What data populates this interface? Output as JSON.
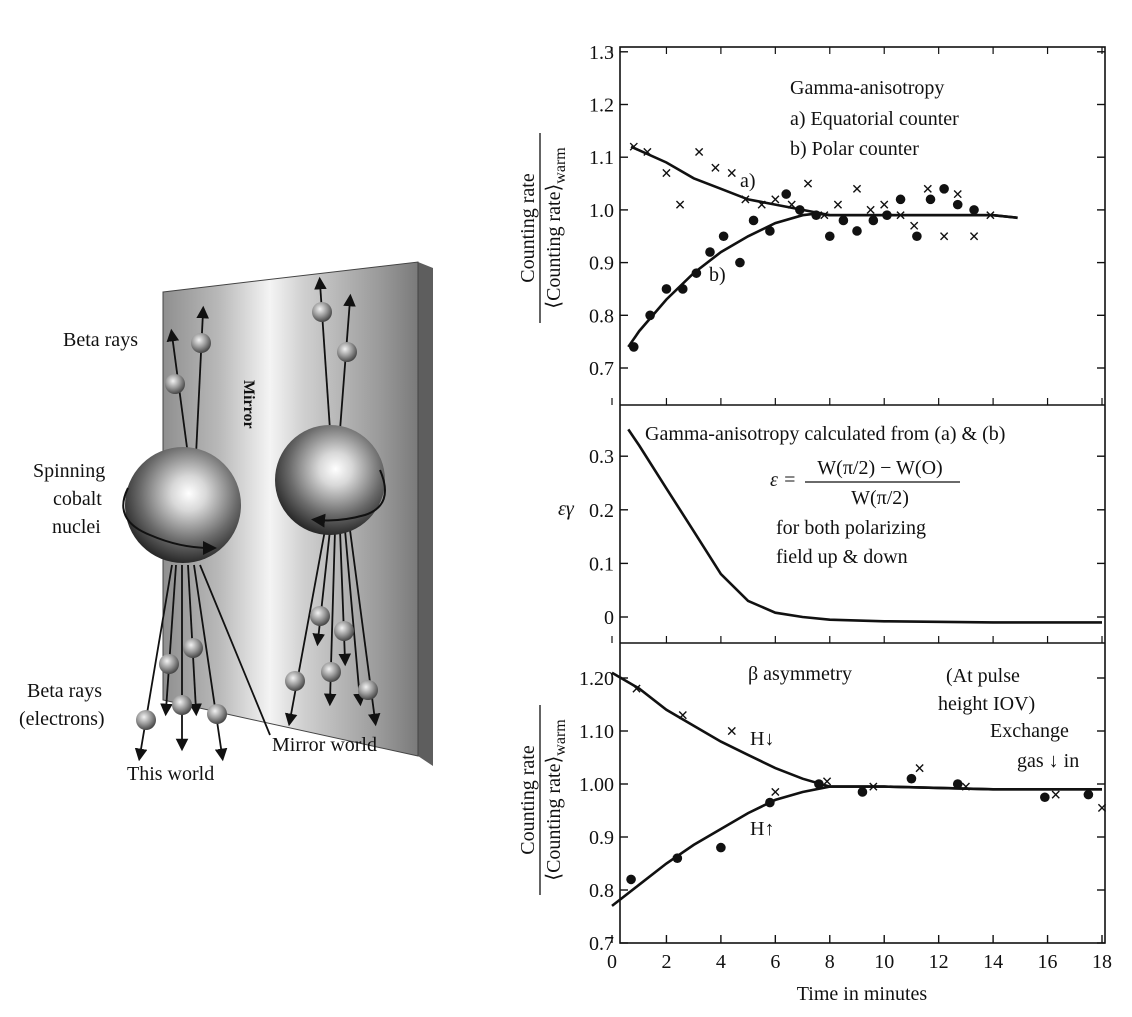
{
  "illustration": {
    "mirror_label": "Mirror",
    "beta_rays_label": "Beta rays",
    "spinning_label_1": "Spinning",
    "spinning_label_2": "cobalt",
    "spinning_label_3": "nuclei",
    "beta_electrons_1": "Beta rays",
    "beta_electrons_2": "(electrons)",
    "this_world": "This world",
    "mirror_world": "Mirror world"
  },
  "x_axis": {
    "label": "Time in minutes",
    "ticks": [
      "0",
      "2",
      "4",
      "6",
      "8",
      "10",
      "12",
      "14",
      "16",
      "18"
    ],
    "range": [
      0,
      18
    ]
  },
  "chart_data": [
    {
      "type": "scatter",
      "ylim": [
        0.65,
        1.3
      ],
      "yticks": [
        "0.7",
        "0.8",
        "0.9",
        "1.0",
        "1.1",
        "1.2",
        "1.3"
      ],
      "ylabel_num": "Counting rate",
      "ylabel_den": "⟨Counting rate⟩",
      "ylabel_sub": "warm",
      "annotation_title": "Gamma-anisotropy",
      "annotation_a": "a) Equatorial counter",
      "annotation_b": "b) Polar counter",
      "curve_a_label": "a)",
      "curve_b_label": "b)",
      "series": [
        {
          "name": "a) Equatorial counter",
          "marker": "x",
          "points": [
            [
              0.8,
              1.12
            ],
            [
              1.3,
              1.11
            ],
            [
              2.0,
              1.07
            ],
            [
              2.5,
              1.01
            ],
            [
              3.2,
              1.11
            ],
            [
              3.8,
              1.08
            ],
            [
              4.4,
              1.07
            ],
            [
              4.9,
              1.02
            ],
            [
              5.5,
              1.01
            ],
            [
              6.0,
              1.02
            ],
            [
              6.6,
              1.01
            ],
            [
              7.2,
              1.05
            ],
            [
              7.8,
              0.99
            ],
            [
              8.3,
              1.01
            ],
            [
              9.0,
              1.04
            ],
            [
              9.5,
              1.0
            ],
            [
              10.0,
              1.01
            ],
            [
              10.6,
              0.99
            ],
            [
              11.1,
              0.97
            ],
            [
              11.6,
              1.04
            ],
            [
              12.2,
              0.95
            ],
            [
              12.7,
              1.03
            ],
            [
              13.3,
              0.95
            ],
            [
              13.9,
              0.99
            ]
          ]
        },
        {
          "name": "b) Polar counter",
          "marker": "dot",
          "points": [
            [
              0.8,
              0.74
            ],
            [
              1.4,
              0.8
            ],
            [
              2.0,
              0.85
            ],
            [
              2.6,
              0.85
            ],
            [
              3.1,
              0.88
            ],
            [
              3.6,
              0.92
            ],
            [
              4.1,
              0.95
            ],
            [
              4.7,
              0.9
            ],
            [
              5.2,
              0.98
            ],
            [
              5.8,
              0.96
            ],
            [
              6.4,
              1.03
            ],
            [
              6.9,
              1.0
            ],
            [
              7.5,
              0.99
            ],
            [
              8.0,
              0.95
            ],
            [
              8.5,
              0.98
            ],
            [
              9.0,
              0.96
            ],
            [
              9.6,
              0.98
            ],
            [
              10.1,
              0.99
            ],
            [
              10.6,
              1.02
            ],
            [
              11.2,
              0.95
            ],
            [
              11.7,
              1.02
            ],
            [
              12.2,
              1.04
            ],
            [
              12.7,
              1.01
            ],
            [
              13.3,
              1.0
            ]
          ]
        }
      ],
      "curves": [
        {
          "name": "a)",
          "points": [
            [
              0.7,
              1.12
            ],
            [
              2,
              1.09
            ],
            [
              3,
              1.06
            ],
            [
              4,
              1.04
            ],
            [
              5,
              1.02
            ],
            [
              6,
              1.01
            ],
            [
              7,
              1.0
            ],
            [
              7.5,
              0.995
            ],
            [
              8,
              0.99
            ],
            [
              10,
              0.99
            ],
            [
              12,
              0.99
            ],
            [
              14,
              0.99
            ],
            [
              14.9,
              0.985
            ]
          ]
        },
        {
          "name": "b)",
          "points": [
            [
              0.6,
              0.74
            ],
            [
              1,
              0.77
            ],
            [
              2,
              0.83
            ],
            [
              3,
              0.88
            ],
            [
              4,
              0.92
            ],
            [
              5,
              0.95
            ],
            [
              6,
              0.975
            ],
            [
              7,
              0.99
            ],
            [
              7.5,
              0.993
            ],
            [
              8,
              0.99
            ],
            [
              10,
              0.99
            ],
            [
              12,
              0.99
            ],
            [
              14,
              0.99
            ],
            [
              14.9,
              0.985
            ]
          ]
        }
      ]
    },
    {
      "type": "line",
      "ylim": [
        -0.02,
        0.38
      ],
      "yticks": [
        "0",
        "0.1",
        "0.2",
        "0.3"
      ],
      "ylabel": "εγ",
      "annotation_title": "Gamma-anisotropy calculated from (a) & (b)",
      "formula_lhs": "ε =",
      "formula_num": "W(π/2) − W(O)",
      "formula_den": "W(π/2)",
      "annotation_line2": "for both polarizing",
      "annotation_line3": "field up & down",
      "series": [
        {
          "name": "",
          "points": [
            [
              0.6,
              0.35
            ],
            [
              1,
              0.32
            ],
            [
              2,
              0.24
            ],
            [
              3,
              0.16
            ],
            [
              4,
              0.08
            ],
            [
              5,
              0.03
            ],
            [
              6,
              0.008
            ],
            [
              7,
              0.0
            ],
            [
              8,
              -0.005
            ],
            [
              10,
              -0.008
            ],
            [
              14,
              -0.01
            ],
            [
              18,
              -0.01
            ]
          ]
        }
      ]
    },
    {
      "type": "scatter",
      "ylim": [
        0.7,
        1.25
      ],
      "yticks": [
        "0.7",
        "0.8",
        "0.9",
        "1.00",
        "1.10",
        "1.20"
      ],
      "ylabel_num": "Counting rate",
      "ylabel_den": "⟨Counting rate⟩",
      "ylabel_sub": "warm",
      "annotation_beta": "β asymmetry",
      "annotation_pulse_1": "(At pulse",
      "annotation_pulse_2": "height IOV)",
      "annotation_exchange_1": "Exchange",
      "annotation_exchange_2": "gas ↓ in",
      "h_down_label": "H↓",
      "h_up_label": "H↑",
      "series": [
        {
          "name": "H↓",
          "marker": "x",
          "points": [
            [
              0.9,
              1.18
            ],
            [
              2.6,
              1.13
            ],
            [
              4.4,
              1.1
            ],
            [
              6.0,
              0.985
            ],
            [
              7.9,
              1.005
            ],
            [
              9.6,
              0.995
            ],
            [
              11.3,
              1.03
            ],
            [
              13.0,
              0.995
            ],
            [
              16.3,
              0.98
            ],
            [
              18.0,
              0.955
            ]
          ]
        },
        {
          "name": "H↑",
          "marker": "dot",
          "points": [
            [
              0.7,
              0.82
            ],
            [
              2.4,
              0.86
            ],
            [
              4.0,
              0.88
            ],
            [
              5.8,
              0.965
            ],
            [
              7.6,
              1.0
            ],
            [
              9.2,
              0.985
            ],
            [
              11.0,
              1.01
            ],
            [
              12.7,
              1.0
            ],
            [
              15.9,
              0.975
            ],
            [
              17.5,
              0.98
            ]
          ]
        }
      ],
      "curves": [
        {
          "name": "H↓",
          "points": [
            [
              0,
              1.21
            ],
            [
              1,
              1.18
            ],
            [
              2,
              1.14
            ],
            [
              3,
              1.11
            ],
            [
              4,
              1.08
            ],
            [
              5,
              1.055
            ],
            [
              6,
              1.03
            ],
            [
              7,
              1.01
            ],
            [
              8,
              0.995
            ],
            [
              10,
              0.995
            ],
            [
              14,
              0.99
            ],
            [
              18,
              0.99
            ]
          ]
        },
        {
          "name": "H↑",
          "points": [
            [
              0,
              0.77
            ],
            [
              1,
              0.81
            ],
            [
              2,
              0.85
            ],
            [
              3,
              0.885
            ],
            [
              4,
              0.915
            ],
            [
              5,
              0.945
            ],
            [
              6,
              0.97
            ],
            [
              7,
              0.985
            ],
            [
              8,
              0.995
            ],
            [
              10,
              0.995
            ],
            [
              14,
              0.99
            ],
            [
              18,
              0.99
            ]
          ]
        }
      ]
    }
  ]
}
